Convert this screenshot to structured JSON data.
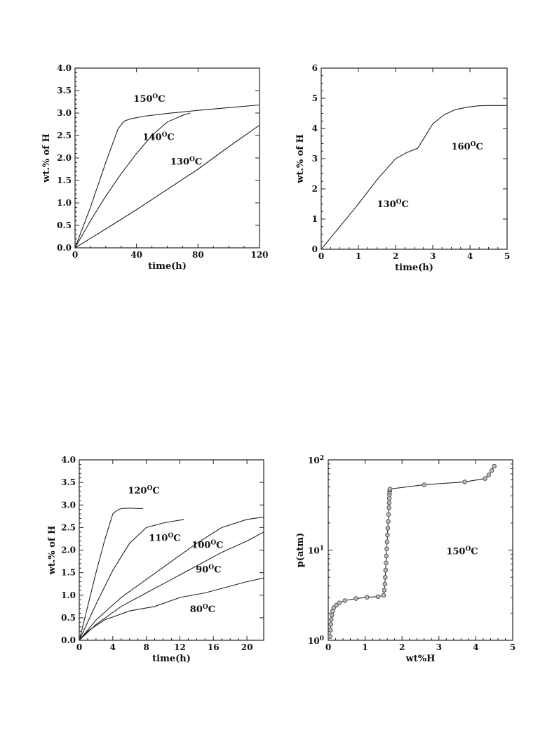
{
  "chart_data": [
    {
      "id": "tl",
      "type": "line",
      "xlabel": "time(h)",
      "ylabel": "wt.% of H",
      "xlim": [
        0,
        120
      ],
      "ylim": [
        0,
        4
      ],
      "xticks": [
        0,
        40,
        80,
        120
      ],
      "yticks": [
        0,
        0.5,
        1,
        1.5,
        2,
        2.5,
        3,
        3.5,
        4
      ],
      "ytick_labels": [
        "0.0",
        "0.5",
        "1.0",
        "1.5",
        "2.0",
        "2.5",
        "3.0",
        "3.5",
        "4.0"
      ],
      "xtick_labels": [
        "0",
        "40",
        "80",
        "120"
      ],
      "series": [
        {
          "x": [
            0,
            10,
            20,
            28,
            32,
            36,
            45,
            60,
            80,
            100,
            120
          ],
          "y": [
            0,
            0.9,
            1.9,
            2.65,
            2.82,
            2.87,
            2.93,
            2.99,
            3.06,
            3.12,
            3.18
          ]
        },
        {
          "x": [
            0,
            10,
            20,
            30,
            40,
            50,
            60,
            70,
            75
          ],
          "y": [
            0,
            0.6,
            1.15,
            1.65,
            2.1,
            2.5,
            2.8,
            2.95,
            3.0
          ]
        },
        {
          "x": [
            0,
            20,
            40,
            60,
            80,
            100,
            120
          ],
          "y": [
            0,
            0.42,
            0.85,
            1.3,
            1.75,
            2.25,
            2.73
          ]
        }
      ],
      "annotations": [
        {
          "base": "150",
          "sup": "O",
          "tail": "C",
          "x": 38,
          "y": 3.25
        },
        {
          "base": "140",
          "sup": "O",
          "tail": "C",
          "x": 44,
          "y": 2.4
        },
        {
          "base": "130",
          "sup": "O",
          "tail": "C",
          "x": 62,
          "y": 1.85
        }
      ]
    },
    {
      "id": "tr",
      "type": "line",
      "xlabel": "time(h)",
      "ylabel": "wt.% of H",
      "xlim": [
        0,
        5
      ],
      "ylim": [
        0,
        6
      ],
      "xticks": [
        0,
        1,
        2,
        3,
        4,
        5
      ],
      "yticks": [
        0,
        1,
        2,
        3,
        4,
        5,
        6
      ],
      "ytick_labels": [
        "0",
        "1",
        "2",
        "3",
        "4",
        "5",
        "6"
      ],
      "xtick_labels": [
        "0",
        "1",
        "2",
        "3",
        "4",
        "5"
      ],
      "series": [
        {
          "x": [
            0,
            0.5,
            1,
            1.5,
            2,
            2.3,
            2.6,
            2.8,
            3.0,
            3.3,
            3.6,
            3.9,
            4.2,
            4.5,
            5.0
          ],
          "y": [
            0,
            0.75,
            1.5,
            2.3,
            3.0,
            3.2,
            3.35,
            3.75,
            4.15,
            4.45,
            4.62,
            4.7,
            4.75,
            4.76,
            4.76
          ]
        }
      ],
      "annotations": [
        {
          "base": "160",
          "sup": "O",
          "tail": "C",
          "x": 3.5,
          "y": 3.3
        },
        {
          "base": "130",
          "sup": "O",
          "tail": "C",
          "x": 1.5,
          "y": 1.4
        }
      ]
    },
    {
      "id": "bl",
      "type": "line",
      "xlabel": "time(h)",
      "ylabel": "wt.% of H",
      "xlim": [
        0,
        22
      ],
      "ylim": [
        0,
        4
      ],
      "xticks": [
        0,
        4,
        8,
        12,
        16,
        20
      ],
      "yticks": [
        0,
        0.5,
        1,
        1.5,
        2,
        2.5,
        3,
        3.5,
        4
      ],
      "ytick_labels": [
        "0.0",
        "0.5",
        "1.0",
        "1.5",
        "2.0",
        "2.5",
        "3.0",
        "3.5",
        "4.0"
      ],
      "xtick_labels": [
        "0",
        "4",
        "8",
        "12",
        "16",
        "20"
      ],
      "series": [
        {
          "x": [
            0,
            1,
            2,
            3,
            4,
            4.5,
            5,
            6,
            7,
            7.6
          ],
          "y": [
            0,
            0.75,
            1.5,
            2.2,
            2.8,
            2.88,
            2.92,
            2.93,
            2.92,
            2.92
          ]
        },
        {
          "x": [
            0,
            2,
            4,
            6,
            8,
            10,
            12.5
          ],
          "y": [
            0,
            0.8,
            1.55,
            2.15,
            2.5,
            2.6,
            2.68
          ]
        },
        {
          "x": [
            0,
            2,
            5,
            8,
            11,
            14,
            17,
            20,
            22
          ],
          "y": [
            0,
            0.45,
            0.95,
            1.35,
            1.75,
            2.15,
            2.5,
            2.68,
            2.73
          ]
        },
        {
          "x": [
            0,
            2,
            5,
            8,
            11,
            14,
            17,
            20,
            22
          ],
          "y": [
            0,
            0.35,
            0.75,
            1.05,
            1.35,
            1.65,
            1.95,
            2.2,
            2.4
          ]
        },
        {
          "x": [
            0,
            1,
            3,
            6,
            9,
            12,
            15,
            18,
            20,
            22
          ],
          "y": [
            0,
            0.2,
            0.45,
            0.65,
            0.75,
            0.95,
            1.05,
            1.2,
            1.3,
            1.38
          ]
        }
      ],
      "annotations": [
        {
          "base": "120",
          "sup": "O",
          "tail": "C",
          "x": 5.8,
          "y": 3.25
        },
        {
          "base": "110",
          "sup": "O",
          "tail": "C",
          "x": 8.3,
          "y": 2.2
        },
        {
          "base": "100",
          "sup": "O",
          "tail": "C",
          "x": 13.4,
          "y": 2.05
        },
        {
          "base": "90",
          "sup": "O",
          "tail": "C",
          "x": 13.9,
          "y": 1.5
        },
        {
          "base": "80",
          "sup": "O",
          "tail": "C",
          "x": 13.2,
          "y": 0.62
        }
      ]
    },
    {
      "id": "br",
      "type": "scatter",
      "xlabel": "wt%H",
      "ylabel": "p(atm)",
      "xlim": [
        0,
        5
      ],
      "ylim": [
        1,
        100
      ],
      "yscale": "log",
      "xticks": [
        0,
        1,
        2,
        3,
        4,
        5
      ],
      "xtick_labels": [
        "0",
        "1",
        "2",
        "3",
        "4",
        "5"
      ],
      "yticks": [
        1,
        10,
        100
      ],
      "ytick_labels": [
        {
          "base": "10",
          "exp": "0"
        },
        {
          "base": "10",
          "exp": "1"
        },
        {
          "base": "10",
          "exp": "2"
        }
      ],
      "series": [
        {
          "x": [
            0.05,
            0.06,
            0.07,
            0.08,
            0.1,
            0.12,
            0.15,
            0.22,
            0.3,
            0.45,
            0.75,
            1.05,
            1.35,
            1.5,
            1.52,
            1.535,
            1.545,
            1.555,
            1.565,
            1.575,
            1.585,
            1.595,
            1.605,
            1.615,
            1.625,
            1.635,
            1.645,
            1.65,
            1.655,
            1.66,
            1.665,
            1.67,
            1.675,
            2.6,
            3.7,
            4.25,
            4.35,
            4.43,
            4.5
          ],
          "y": [
            1.1,
            1.3,
            1.5,
            1.7,
            1.9,
            2.1,
            2.3,
            2.45,
            2.6,
            2.75,
            2.9,
            3.0,
            3.05,
            3.15,
            3.6,
            4.2,
            5.0,
            6.0,
            7.2,
            8.6,
            10.3,
            12.3,
            14.7,
            17.5,
            20.8,
            24.8,
            29.5,
            33.5,
            37.5,
            41.5,
            44.5,
            46.5,
            47.5,
            53,
            57,
            62,
            68,
            76,
            85
          ]
        }
      ],
      "annotations": [
        {
          "base": "150",
          "sup": "O",
          "tail": "C",
          "x": 3.2,
          "y": 9.0
        }
      ]
    }
  ]
}
